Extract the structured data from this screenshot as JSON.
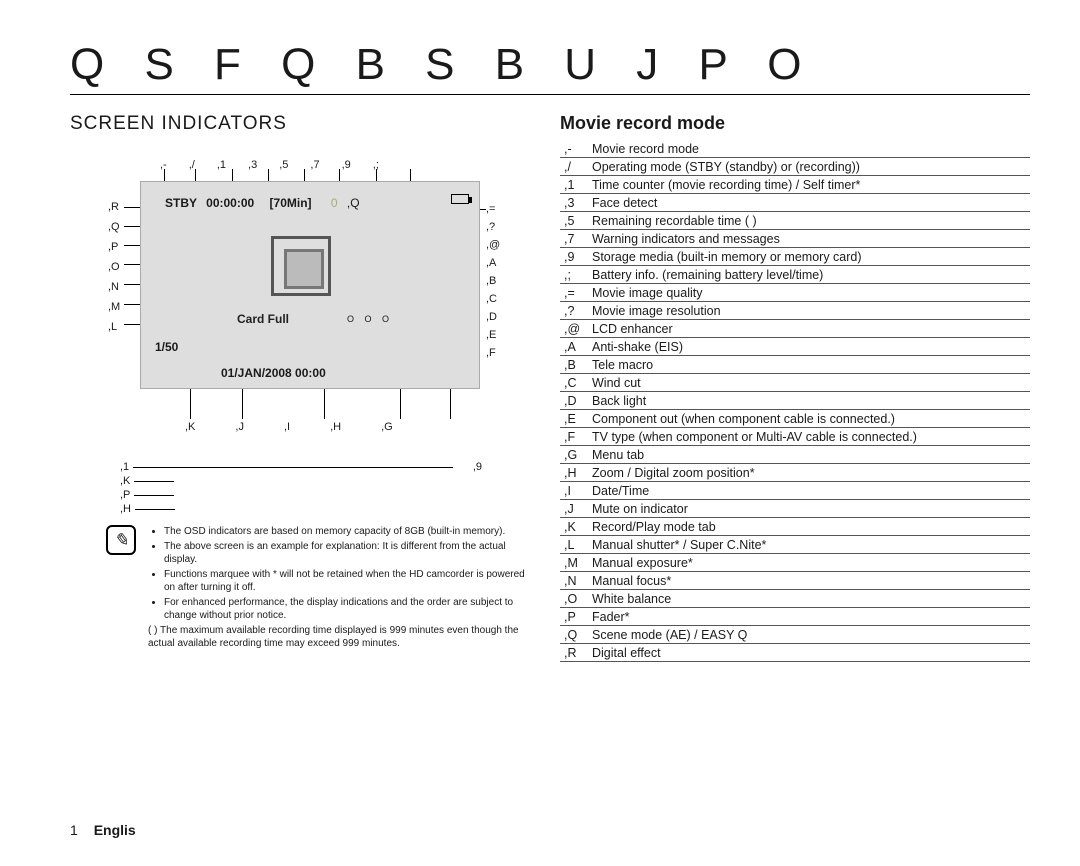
{
  "title": "Q S F Q B S B U J P O",
  "section_heading": "SCREEN INDICATORS",
  "mode_heading": "Movie record mode",
  "diagram": {
    "top_labels": [
      ",-",
      ",/",
      ",1",
      ",3",
      ",5",
      ",7",
      ",9",
      ",;"
    ],
    "bottom_labels": [
      ",K",
      ",J",
      ",I",
      ",H",
      ",G"
    ],
    "left_labels": [
      ",R",
      ",Q",
      ",P",
      ",O",
      ",N",
      ",M",
      ",L"
    ],
    "right_labels": [
      ",=",
      ",?",
      ",@",
      ",A",
      ",B",
      ",C",
      ",D",
      ",E",
      ",F"
    ],
    "screen": {
      "stby": "STBY",
      "counter": "00:00:00",
      "remain": "[70Min]",
      "topright1": "0",
      "topright2": ",Q",
      "cardfull": "Card Full",
      "shutter": "1/50",
      "date": "01/JAN/2008 00:00",
      "dots": "O O O"
    },
    "extras": {
      "l1": ",1",
      "l2": ",K",
      "l3": ",P",
      "l4": ",H",
      "r1": ",9"
    }
  },
  "notes": {
    "n1": "The OSD indicators are based on memory capacity of 8GB (built-in memory).",
    "n2": "The above screen is an example for explanation: It is different from the actual display.",
    "n3": "Functions marquee with * will not be retained when the HD camcorder is powered on after turning it off.",
    "n4": "For enhanced performance, the display indications and the order are subject to change without prior notice.",
    "n5": "(   ) The maximum available recording time displayed is 999 minutes even though the actual available recording time may exceed 999 minutes."
  },
  "table": [
    {
      "k": ",-",
      "v": "Movie record mode"
    },
    {
      "k": ",/",
      "v": "Operating mode (STBY (standby) or     (recording))"
    },
    {
      "k": ",1",
      "v": "Time counter (movie recording time) / Self timer*"
    },
    {
      "k": ",3",
      "v": "Face detect"
    },
    {
      "k": ",5",
      "v": "Remaining recordable time (  )"
    },
    {
      "k": ",7",
      "v": "Warning indicators and messages"
    },
    {
      "k": ",9",
      "v": "Storage media (built-in memory or memory card)"
    },
    {
      "k": ",;",
      "v": "Battery info. (remaining battery level/time)"
    },
    {
      "k": ",=",
      "v": "Movie image quality"
    },
    {
      "k": ",?",
      "v": "Movie image resolution"
    },
    {
      "k": ",@",
      "v": "LCD enhancer"
    },
    {
      "k": ",A",
      "v": "Anti-shake (EIS)"
    },
    {
      "k": ",B",
      "v": "Tele macro"
    },
    {
      "k": ",C",
      "v": "Wind cut"
    },
    {
      "k": ",D",
      "v": "Back light"
    },
    {
      "k": ",E",
      "v": "Component out (when component cable is connected.)"
    },
    {
      "k": ",F",
      "v": "TV type (when component or Multi-AV cable is connected.)"
    },
    {
      "k": ",G",
      "v": "Menu tab"
    },
    {
      "k": ",H",
      "v": "Zoom / Digital zoom position*"
    },
    {
      "k": ",I",
      "v": "Date/Time"
    },
    {
      "k": ",J",
      "v": "Mute on indicator"
    },
    {
      "k": ",K",
      "v": "Record/Play mode tab"
    },
    {
      "k": ",L",
      "v": "Manual shutter* / Super C.Nite*"
    },
    {
      "k": ",M",
      "v": "Manual exposure*"
    },
    {
      "k": ",N",
      "v": "Manual focus*"
    },
    {
      "k": ",O",
      "v": "White balance"
    },
    {
      "k": ",P",
      "v": "Fader*"
    },
    {
      "k": ",Q",
      "v": "Scene mode (AE) / EASY Q"
    },
    {
      "k": ",R",
      "v": "Digital effect"
    }
  ],
  "footer": {
    "page": "1",
    "lang": "Englis"
  }
}
